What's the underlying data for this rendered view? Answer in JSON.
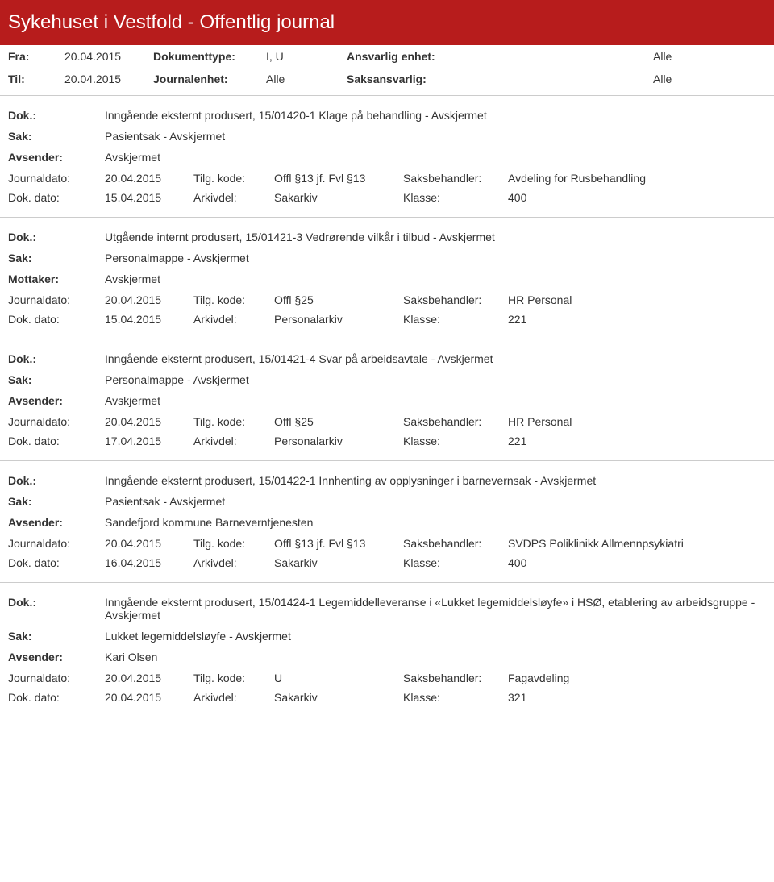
{
  "header": {
    "title": "Sykehuset i Vestfold - Offentlig journal",
    "bg_color": "#b71c1c",
    "text_color": "#ffffff",
    "font_size": 24
  },
  "filters": {
    "fra_label": "Fra:",
    "fra_value": "20.04.2015",
    "til_label": "Til:",
    "til_value": "20.04.2015",
    "doktype_label": "Dokumenttype:",
    "doktype_value": "I, U",
    "journalenhet_label": "Journalenhet:",
    "journalenhet_value": "Alle",
    "ansv_enhet_label": "Ansvarlig enhet:",
    "ansv_enhet_value": "Alle",
    "saksansvarlig_label": "Saksansvarlig:",
    "saksansvarlig_value": "Alle"
  },
  "labels": {
    "dok": "Dok.:",
    "sak": "Sak:",
    "avsender": "Avsender:",
    "mottaker": "Mottaker:",
    "journaldato": "Journaldato:",
    "tilgkode": "Tilg. kode:",
    "saksbehandler": "Saksbehandler:",
    "dokdato": "Dok. dato:",
    "arkivdel": "Arkivdel:",
    "klasse": "Klasse:"
  },
  "entries": [
    {
      "dok": "Inngående eksternt produsert, 15/01420-1 Klage på behandling - Avskjermet",
      "sak": "Pasientsak - Avskjermet",
      "party_label": "Avsender:",
      "party": "Avskjermet",
      "journaldato": "20.04.2015",
      "tilgkode": "Offl §13 jf. Fvl §13",
      "saksbehandler": "Avdeling for Rusbehandling",
      "dokdato": "15.04.2015",
      "arkivdel": "Sakarkiv",
      "klasse": "400"
    },
    {
      "dok": "Utgående internt produsert, 15/01421-3 Vedrørende vilkår i tilbud - Avskjermet",
      "sak": "Personalmappe - Avskjermet",
      "party_label": "Mottaker:",
      "party": "Avskjermet",
      "journaldato": "20.04.2015",
      "tilgkode": "Offl §25",
      "saksbehandler": "HR Personal",
      "dokdato": "15.04.2015",
      "arkivdel": "Personalarkiv",
      "klasse": "221"
    },
    {
      "dok": "Inngående eksternt produsert, 15/01421-4 Svar på arbeidsavtale - Avskjermet",
      "sak": "Personalmappe - Avskjermet",
      "party_label": "Avsender:",
      "party": "Avskjermet",
      "journaldato": "20.04.2015",
      "tilgkode": "Offl §25",
      "saksbehandler": "HR Personal",
      "dokdato": "17.04.2015",
      "arkivdel": "Personalarkiv",
      "klasse": "221"
    },
    {
      "dok": "Inngående eksternt produsert, 15/01422-1 Innhenting av opplysninger i barnevernsak - Avskjermet",
      "sak": "Pasientsak - Avskjermet",
      "party_label": "Avsender:",
      "party": "Sandefjord kommune Barneverntjenesten",
      "journaldato": "20.04.2015",
      "tilgkode": "Offl §13 jf. Fvl §13",
      "saksbehandler": "SVDPS Poliklinikk Allmennpsykiatri",
      "dokdato": "16.04.2015",
      "arkivdel": "Sakarkiv",
      "klasse": "400"
    },
    {
      "dok": "Inngående eksternt produsert, 15/01424-1 Legemiddelleveranse i «Lukket legemiddelsløyfe» i HSØ, etablering av arbeidsgruppe - Avskjermet",
      "sak": "Lukket legemiddelsløyfe - Avskjermet",
      "party_label": "Avsender:",
      "party": "Kari Olsen",
      "journaldato": "20.04.2015",
      "tilgkode": "U",
      "saksbehandler": "Fagavdeling",
      "dokdato": "20.04.2015",
      "arkivdel": "Sakarkiv",
      "klasse": "321"
    }
  ],
  "style": {
    "body_font_size": 14,
    "text_color": "#333333",
    "separator_color": "#cccccc"
  }
}
